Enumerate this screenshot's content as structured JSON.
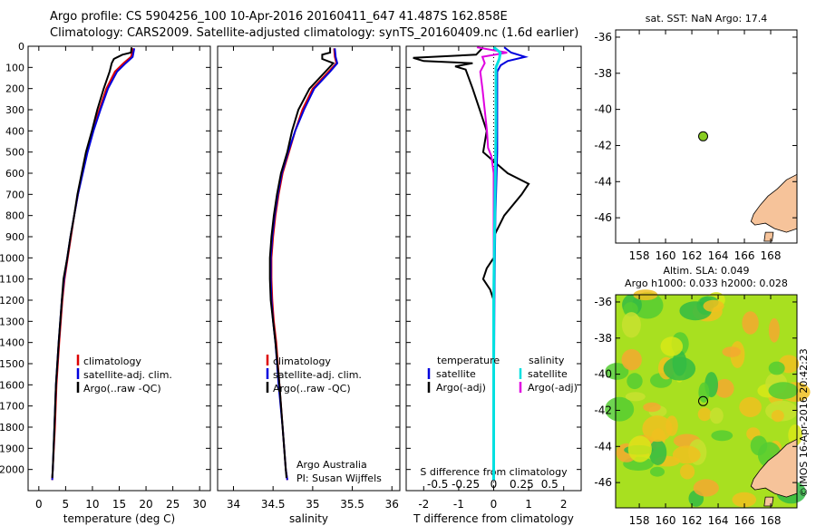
{
  "header": {
    "line1": "Argo profile: CS 5904256_100 10-Apr-2016 20160411_647 41.487S 162.858E",
    "line2": "Climatology: CARS2009. Satellite-adjusted climatology: synTS_20160409.nc (1.6d earlier)"
  },
  "credit": "©IMOS 16-Apr-2016 20:42:23",
  "colors": {
    "climatology": "#dd0000",
    "satellite": "#0000dd",
    "argo": "#000000",
    "sal_satellite": "#00e0e0",
    "sal_argo": "#e000e0",
    "land": "#f6c39a",
    "float_marker": "#88cc22"
  },
  "chart_data": [
    {
      "type": "line",
      "name": "temperature-profile",
      "xlabel": "temperature (deg C)",
      "ylabel": "",
      "xlim": [
        -2,
        32
      ],
      "ylim": [
        2100,
        0
      ],
      "xticks": [
        0,
        5,
        10,
        15,
        20,
        25,
        30
      ],
      "yticks": [
        0,
        100,
        200,
        300,
        400,
        500,
        600,
        700,
        800,
        900,
        1000,
        1100,
        1200,
        1300,
        1400,
        1500,
        1600,
        1700,
        1800,
        1900,
        2000
      ],
      "legend": [
        "climatology",
        "satellite-adj. clim.",
        "Argo(..raw -QC)"
      ],
      "series": [
        {
          "name": "climatology",
          "depth": [
            10,
            50,
            80,
            120,
            200,
            300,
            400,
            500,
            600,
            700,
            800,
            900,
            1000,
            1100,
            1200,
            1400,
            1600,
            1800,
            2000,
            2050
          ],
          "values": [
            17.6,
            17.2,
            15.8,
            14.2,
            12.6,
            11.3,
            10.0,
            9.0,
            8.1,
            7.3,
            6.6,
            6.0,
            5.4,
            4.8,
            4.4,
            3.8,
            3.3,
            3.0,
            2.6,
            2.5
          ]
        },
        {
          "name": "satellite",
          "depth": [
            10,
            50,
            80,
            120,
            200,
            300,
            400,
            500,
            600,
            700,
            800,
            900,
            1000,
            1100,
            1200,
            1400,
            1600,
            1800,
            2000,
            2050
          ],
          "values": [
            17.8,
            17.5,
            16.2,
            14.6,
            12.9,
            11.5,
            10.2,
            9.1,
            8.2,
            7.3,
            6.6,
            5.9,
            5.3,
            4.7,
            4.3,
            3.7,
            3.2,
            2.9,
            2.6,
            2.5
          ]
        },
        {
          "name": "argo",
          "depth": [
            5,
            30,
            40,
            60,
            80,
            120,
            200,
            300,
            400,
            500,
            600,
            700,
            800,
            900,
            1000,
            1100,
            1200,
            1400,
            1600,
            1800,
            2000,
            2040
          ],
          "values": [
            17.3,
            17.2,
            15.6,
            14.0,
            13.6,
            13.2,
            12.1,
            10.9,
            9.9,
            8.8,
            8.0,
            7.2,
            6.6,
            5.9,
            5.3,
            4.6,
            4.3,
            3.7,
            3.2,
            2.9,
            2.6,
            2.5
          ]
        }
      ]
    },
    {
      "type": "line",
      "name": "salinity-profile",
      "xlabel": "salinity",
      "xlim": [
        33.8,
        36.1
      ],
      "ylim": [
        2100,
        0
      ],
      "xticks": [
        34,
        34.5,
        35,
        35.5,
        36
      ],
      "legend": [
        "climatology",
        "satellite-adj. clim.",
        "Argo(..raw -QC)"
      ],
      "annotation": [
        "Argo Australia",
        "PI: Susan Wijffels"
      ],
      "series": [
        {
          "name": "climatology",
          "depth": [
            10,
            50,
            80,
            120,
            200,
            300,
            400,
            500,
            600,
            700,
            800,
            900,
            1000,
            1100,
            1200,
            1300,
            1400,
            1600,
            1800,
            2000,
            2050
          ],
          "values": [
            35.27,
            35.28,
            35.3,
            35.2,
            35.0,
            34.87,
            34.78,
            34.7,
            34.62,
            34.57,
            34.53,
            34.5,
            34.48,
            34.48,
            34.49,
            34.51,
            34.54,
            34.58,
            34.62,
            34.66,
            34.68
          ]
        },
        {
          "name": "satellite",
          "depth": [
            10,
            50,
            80,
            120,
            200,
            300,
            400,
            500,
            600,
            700,
            800,
            900,
            1000,
            1100,
            1200,
            1300,
            1400,
            1600,
            1800,
            2000,
            2050
          ],
          "values": [
            35.28,
            35.29,
            35.31,
            35.22,
            35.02,
            34.89,
            34.78,
            34.69,
            34.61,
            34.56,
            34.52,
            34.49,
            34.47,
            34.47,
            34.48,
            34.5,
            34.53,
            34.57,
            34.62,
            34.66,
            34.68
          ]
        },
        {
          "name": "argo",
          "depth": [
            5,
            30,
            40,
            60,
            80,
            120,
            200,
            300,
            400,
            500,
            600,
            700,
            800,
            900,
            1000,
            1100,
            1200,
            1300,
            1400,
            1600,
            1800,
            2000,
            2040
          ],
          "values": [
            35.22,
            35.22,
            35.12,
            35.12,
            35.26,
            35.16,
            34.96,
            34.82,
            34.74,
            34.68,
            34.6,
            34.55,
            34.51,
            34.48,
            34.46,
            34.46,
            34.47,
            34.5,
            34.53,
            34.58,
            34.62,
            34.66,
            34.67
          ]
        }
      ]
    },
    {
      "type": "line",
      "name": "difference-profile",
      "xlabel": "T difference from climatology",
      "xlabel_top": "S difference from climatology",
      "xlim": [
        -2.5,
        2.5
      ],
      "ylim": [
        2100,
        0
      ],
      "xticks": [
        -2,
        -1,
        0,
        1,
        2
      ],
      "xticks_s": [
        -0.5,
        -0.25,
        0,
        0.25,
        0.5
      ],
      "legend_temperature": {
        "title": "temperature",
        "items": [
          "satellite",
          "Argo(-adj)"
        ]
      },
      "legend_salinity": {
        "title": "salinity",
        "items": [
          "satellite",
          "Argo(-adj)"
        ]
      },
      "series": [
        {
          "name": "T satellite",
          "depth": [
            5,
            30,
            50,
            70,
            90,
            120,
            200,
            300,
            500,
            800,
            1200,
            1600,
            2050
          ],
          "values": [
            0.3,
            0.5,
            0.9,
            0.4,
            0.2,
            0.1,
            0.1,
            0.1,
            0.1,
            0.05,
            0.02,
            0.01,
            0.0
          ]
        },
        {
          "name": "T argo",
          "depth": [
            5,
            40,
            55,
            70,
            80,
            95,
            110,
            200,
            300,
            400,
            500,
            600,
            650,
            700,
            800,
            900,
            1000,
            1050,
            1100,
            1150,
            1200,
            1500,
            2040
          ],
          "values": [
            -0.3,
            -0.5,
            -2.3,
            -2.0,
            -0.6,
            -1.1,
            -0.8,
            -0.6,
            -0.4,
            -0.2,
            -0.3,
            0.4,
            1.0,
            0.8,
            0.3,
            0.0,
            0.0,
            -0.2,
            -0.3,
            -0.1,
            0.0,
            0.0,
            0.0
          ]
        },
        {
          "name": "S satellite",
          "depth": [
            5,
            30,
            60,
            100,
            200,
            400,
            800,
            1200,
            2050
          ],
          "values": [
            0.0,
            0.06,
            0.05,
            0.02,
            0.02,
            0.02,
            0.01,
            0.0,
            0.0
          ]
        },
        {
          "name": "S argo",
          "depth": [
            5,
            30,
            50,
            80,
            120,
            200,
            300,
            400,
            480,
            520,
            600,
            800,
            1000,
            1200,
            1600,
            2040
          ],
          "values": [
            -0.15,
            0.12,
            -0.1,
            -0.08,
            -0.12,
            -0.1,
            -0.08,
            -0.06,
            -0.05,
            -0.02,
            0.0,
            0.0,
            0.0,
            0.0,
            0.0,
            0.0
          ]
        }
      ]
    },
    {
      "type": "scatter",
      "name": "sst-map",
      "title": "sat. SST: NaN Argo: 17.4",
      "xlim": [
        156.2,
        170
      ],
      "ylim": [
        -47.4,
        -35.6
      ],
      "xticks": [
        158,
        160,
        162,
        164,
        166,
        168
      ],
      "yticks": [
        -36,
        -38,
        -40,
        -42,
        -44,
        -46
      ],
      "float": {
        "lon": 162.86,
        "lat": -41.49
      }
    },
    {
      "type": "heatmap",
      "name": "sla-map",
      "title_lines": [
        "Altim. SLA: 0.049",
        "Argo h1000: 0.033 h2000: 0.028"
      ],
      "xlim": [
        156.2,
        170
      ],
      "ylim": [
        -47.4,
        -35.6
      ],
      "xticks": [
        158,
        160,
        162,
        164,
        166,
        168
      ],
      "yticks": [
        -36,
        -38,
        -40,
        -42,
        -44,
        -46
      ],
      "float": {
        "lon": 162.86,
        "lat": -41.49
      }
    }
  ]
}
